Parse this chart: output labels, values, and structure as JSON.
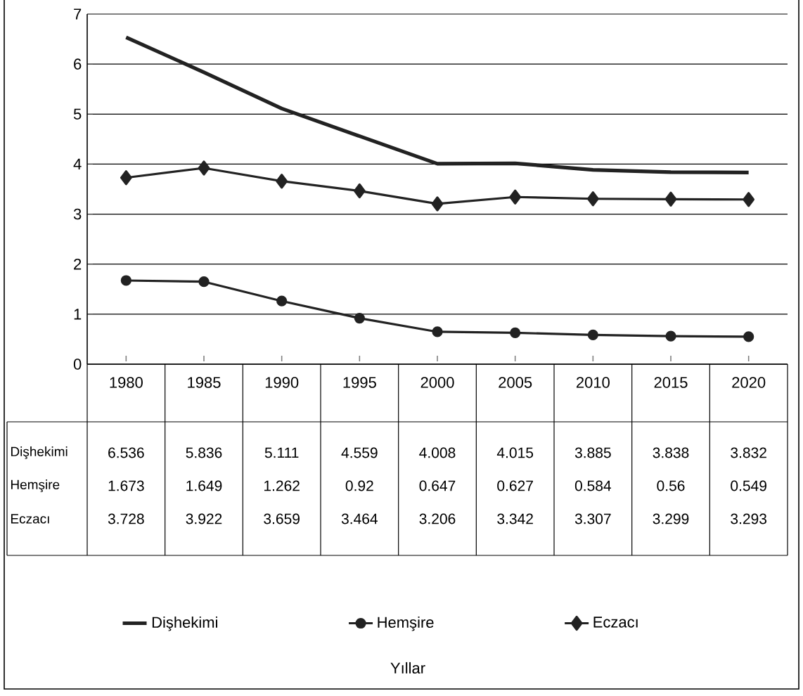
{
  "chart_data": {
    "type": "line",
    "annotations": [
      "Yıllar"
    ],
    "categories": [
      "1980",
      "1985",
      "1990",
      "1995",
      "2000",
      "2005",
      "2010",
      "2015",
      "2020"
    ],
    "ylim": [
      0,
      7
    ],
    "yticks": [
      0,
      1,
      2,
      3,
      4,
      5,
      6,
      7
    ],
    "grid": "y",
    "legend": "bottom",
    "data_labels": true,
    "series": [
      {
        "name": "Dişhekimi",
        "color": "#222222",
        "marker": "none",
        "values": [
          6.536,
          5.836,
          5.111,
          4.559,
          4.008,
          4.015,
          3.885,
          3.838,
          3.832
        ],
        "value_labels": [
          "6.536",
          "5.836",
          "5.111",
          "4.559",
          "4.008",
          "4.015",
          "3.885",
          "3.838",
          "3.832"
        ]
      },
      {
        "name": "Hemşire",
        "color": "#222222",
        "marker": "circle",
        "values": [
          1.673,
          1.649,
          1.262,
          0.92,
          0.647,
          0.627,
          0.584,
          0.56,
          0.549
        ],
        "value_labels": [
          "1.673",
          "1.649",
          "1.262",
          "0.92",
          "0.647",
          "0.627",
          "0.584",
          "0.56",
          "0.549"
        ]
      },
      {
        "name": "Eczacı",
        "color": "#222222",
        "marker": "diamond",
        "values": [
          3.728,
          3.922,
          3.659,
          3.464,
          3.206,
          3.342,
          3.307,
          3.299,
          3.293
        ],
        "value_labels": [
          "3.728",
          "3.922",
          "3.659",
          "3.464",
          "3.206",
          "3.342",
          "3.307",
          "3.299",
          "3.293"
        ]
      }
    ]
  }
}
